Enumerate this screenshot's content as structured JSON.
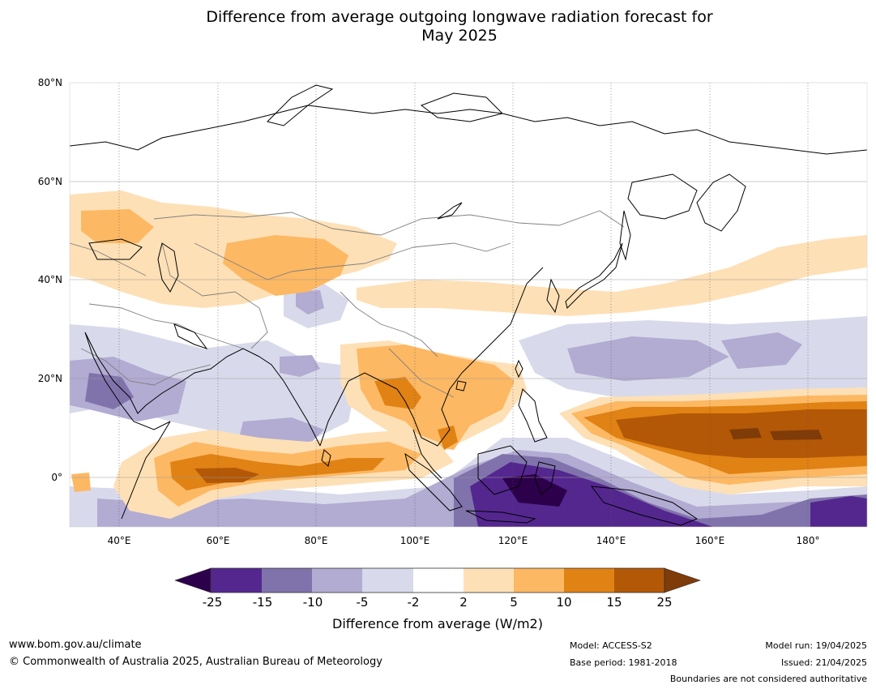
{
  "title": {
    "line1": "Difference from average outgoing longwave radiation forecast for",
    "line2": "May 2025"
  },
  "map": {
    "lon_range": [
      30,
      192
    ],
    "lat_range": [
      -10,
      80
    ],
    "lat_ticks": [
      {
        "value": 80,
        "label": "80°N"
      },
      {
        "value": 60,
        "label": "60°N"
      },
      {
        "value": 40,
        "label": "40°N"
      },
      {
        "value": 20,
        "label": "20°N"
      },
      {
        "value": 0,
        "label": "0°"
      }
    ],
    "lon_ticks": [
      {
        "value": 40,
        "label": "40°E"
      },
      {
        "value": 60,
        "label": "60°E"
      },
      {
        "value": 80,
        "label": "80°E"
      },
      {
        "value": 100,
        "label": "100°E"
      },
      {
        "value": 120,
        "label": "120°E"
      },
      {
        "value": 140,
        "label": "140°E"
      },
      {
        "value": 160,
        "label": "160°E"
      },
      {
        "value": 180,
        "label": "180°"
      }
    ]
  },
  "colorbar": {
    "levels": [
      "-25",
      "-15",
      "-10",
      "-5",
      "-2",
      "2",
      "5",
      "10",
      "15",
      "25"
    ],
    "colors": [
      "#54278f",
      "#8073ac",
      "#b2abd2",
      "#d8daeb",
      "#ffffff",
      "#fee0b6",
      "#fdb863",
      "#e08214",
      "#b35806"
    ],
    "under_color": "#2d004b",
    "over_color": "#7f3b08",
    "label": "Difference from average (W/m2)"
  },
  "footer": {
    "website": "www.bom.gov.au/climate",
    "copyright": "© Commonwealth of Australia 2025, Australian Bureau of Meteorology",
    "model": "Model: ACCESS-S2",
    "base_period": "Base period: 1981-2018",
    "model_run": "Model run: 19/04/2025",
    "issued": "Issued: 21/04/2025",
    "disclaimer": "Boundaries are not considered authoritative"
  }
}
